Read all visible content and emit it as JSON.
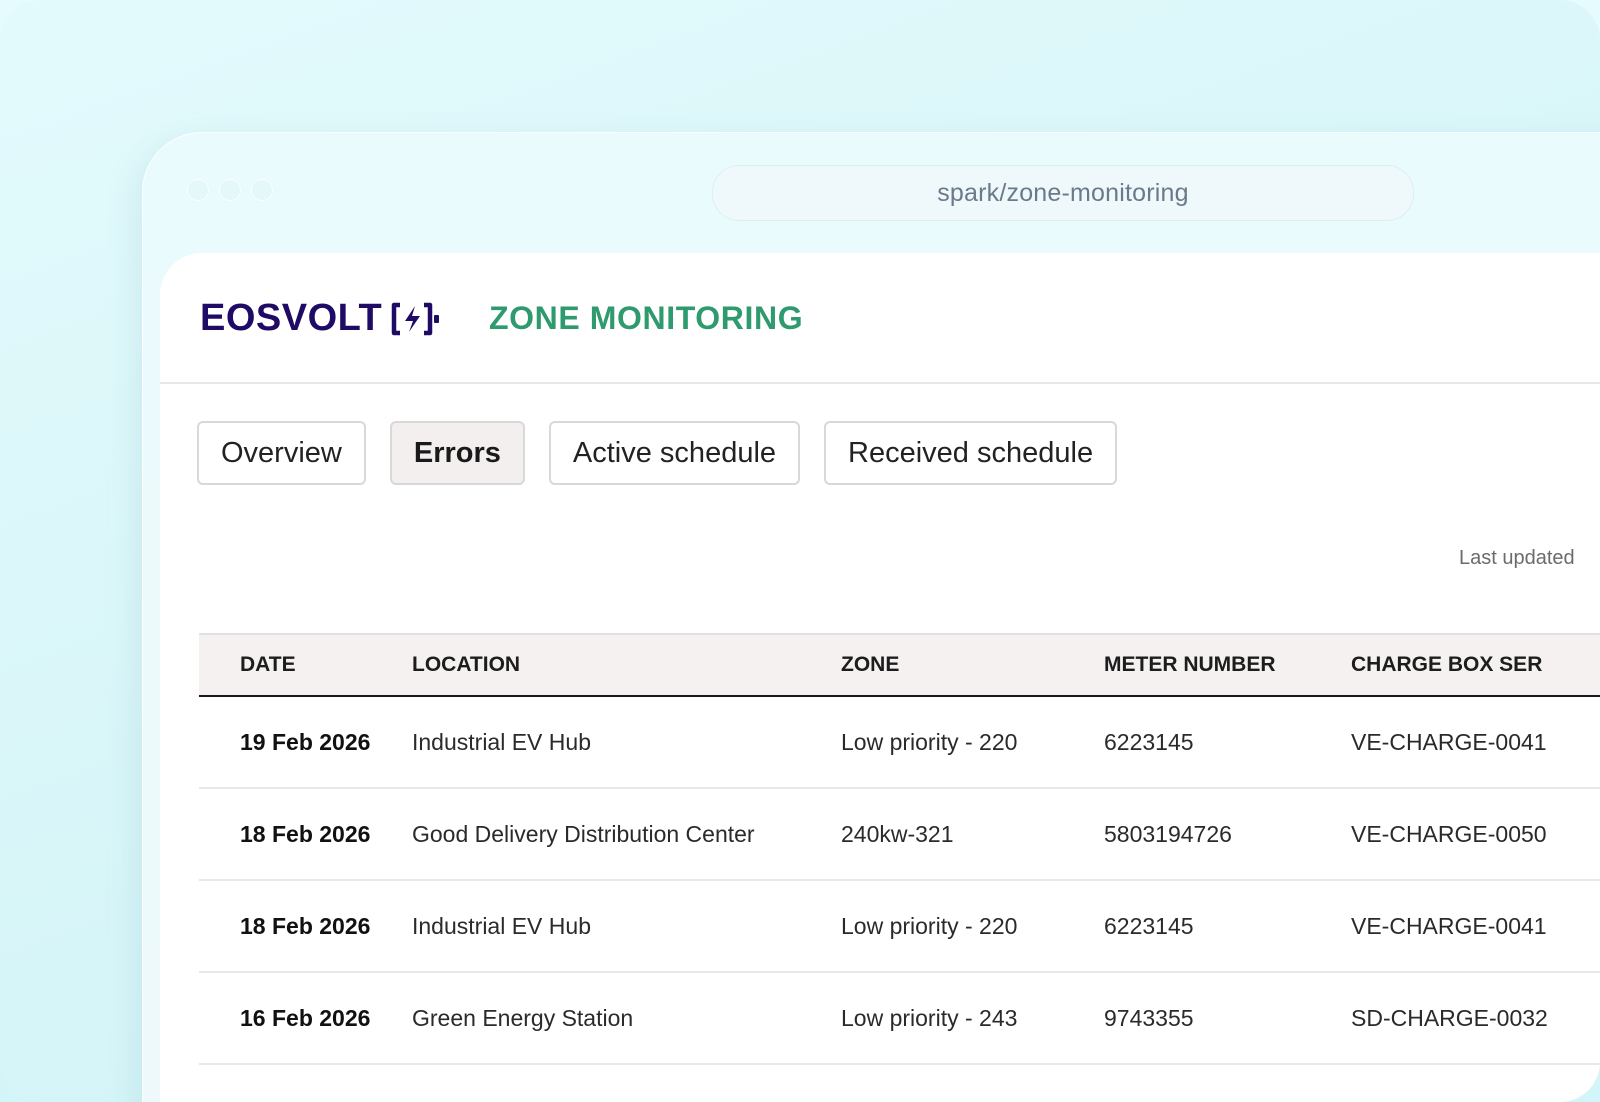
{
  "browser": {
    "url": "spark/zone-monitoring"
  },
  "header": {
    "logo_text": "EOSVOLT",
    "page_title": "ZONE MONITORING"
  },
  "tabs": [
    {
      "label": "Overview",
      "active": false
    },
    {
      "label": "Errors",
      "active": true
    },
    {
      "label": "Active schedule",
      "active": false
    },
    {
      "label": "Received schedule",
      "active": false
    }
  ],
  "status": {
    "last_updated": "Last updated"
  },
  "table": {
    "columns": [
      "DATE",
      "LOCATION",
      "ZONE",
      "METER NUMBER",
      "CHARGE BOX SER"
    ],
    "rows": [
      {
        "date": "19 Feb 2026",
        "location": "Industrial EV Hub",
        "zone": "Low priority - 220",
        "meter": "6223145",
        "charge_box": "VE-CHARGE-0041"
      },
      {
        "date": "18 Feb 2026",
        "location": "Good Delivery Distribution Center",
        "zone": "240kw-321",
        "meter": "5803194726",
        "charge_box": "VE-CHARGE-0050"
      },
      {
        "date": "18 Feb 2026",
        "location": "Industrial EV Hub",
        "zone": "Low priority - 220",
        "meter": "6223145",
        "charge_box": "VE-CHARGE-0041"
      },
      {
        "date": "16 Feb 2026",
        "location": "Green Energy Station",
        "zone": "Low priority - 243",
        "meter": "9743355",
        "charge_box": "SD-CHARGE-0032"
      }
    ]
  },
  "colors": {
    "logo": "#1f0a66",
    "title": "#2e9a6e",
    "active_tab_bg": "#f2efee",
    "table_header_bg": "#f4f1f0"
  },
  "icons": {
    "logo_mark": "battery-bolt-icon"
  }
}
